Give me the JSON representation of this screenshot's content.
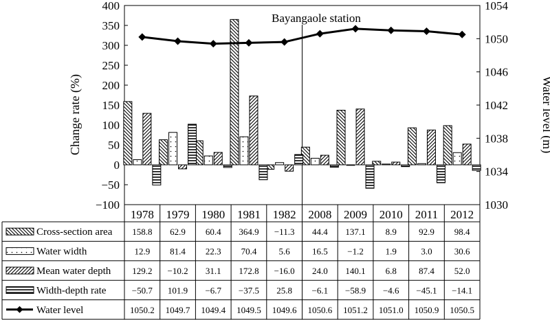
{
  "chart_data": {
    "type": "bar",
    "annotation": "Bayangaole station",
    "categories": [
      "1978",
      "1979",
      "1980",
      "1981",
      "1982",
      "2008",
      "2009",
      "2010",
      "2011",
      "2012"
    ],
    "series": [
      {
        "name": "Cross-section area",
        "values": [
          158.8,
          62.9,
          60.4,
          364.9,
          -11.3,
          44.4,
          137.1,
          8.9,
          92.9,
          98.4
        ],
        "display": [
          "158.8",
          "62.9",
          "60.4",
          "364.9",
          "−11.3",
          "44.4",
          "137.1",
          "8.9",
          "92.9",
          "98.4"
        ],
        "pattern": "backslash"
      },
      {
        "name": "Water width",
        "values": [
          12.9,
          81.4,
          22.3,
          70.4,
          5.6,
          16.5,
          -1.2,
          1.9,
          3.0,
          30.6
        ],
        "display": [
          "12.9",
          "81.4",
          "22.3",
          "70.4",
          "5.6",
          "16.5",
          "−1.2",
          "1.9",
          "3.0",
          "30.6"
        ],
        "pattern": "dots"
      },
      {
        "name": "Mean water depth",
        "values": [
          129.2,
          -10.2,
          31.1,
          172.8,
          -16.0,
          24.0,
          140.1,
          6.8,
          87.4,
          52.0
        ],
        "display": [
          "129.2",
          "−10.2",
          "31.1",
          "172.8",
          "−16.0",
          "24.0",
          "140.1",
          "6.8",
          "87.4",
          "52.0"
        ],
        "pattern": "slash"
      },
      {
        "name": "Width-depth rate",
        "values": [
          -50.7,
          101.9,
          -6.7,
          -37.5,
          25.8,
          -6.1,
          -58.9,
          -4.6,
          -45.1,
          -14.1
        ],
        "display": [
          "−50.7",
          "101.9",
          "−6.7",
          "−37.5",
          "25.8",
          "−6.1",
          "−58.9",
          "−4.6",
          "−45.1",
          "−14.1"
        ],
        "pattern": "hlines"
      },
      {
        "name": "Water level",
        "type": "line",
        "axis": "right",
        "values": [
          1050.2,
          1049.7,
          1049.4,
          1049.5,
          1049.6,
          1050.6,
          1051.2,
          1051.0,
          1050.9,
          1050.5
        ],
        "display": [
          "1050.2",
          "1049.7",
          "1049.4",
          "1049.5",
          "1049.6",
          "1050.6",
          "1051.2",
          "1051.0",
          "1050.9",
          "1050.5"
        ],
        "marker": "diamond"
      }
    ],
    "y_left": {
      "label": "Change rate (%)",
      "min": -100,
      "max": 400,
      "ticks": [
        400,
        350,
        300,
        250,
        200,
        150,
        100,
        50,
        0,
        -50,
        -100
      ],
      "tick_labels": [
        "400",
        "350",
        "300",
        "250",
        "200",
        "150",
        "100",
        "50",
        "0",
        "−50",
        "−100"
      ]
    },
    "y_right": {
      "label": "Water level (m)",
      "min": 1030,
      "max": 1054,
      "ticks": [
        1054,
        1050,
        1046,
        1042,
        1038,
        1034,
        1030
      ],
      "tick_labels": [
        "1054",
        "1050",
        "1046",
        "1042",
        "1038",
        "1034",
        "1030"
      ]
    },
    "legend": "table-below"
  }
}
